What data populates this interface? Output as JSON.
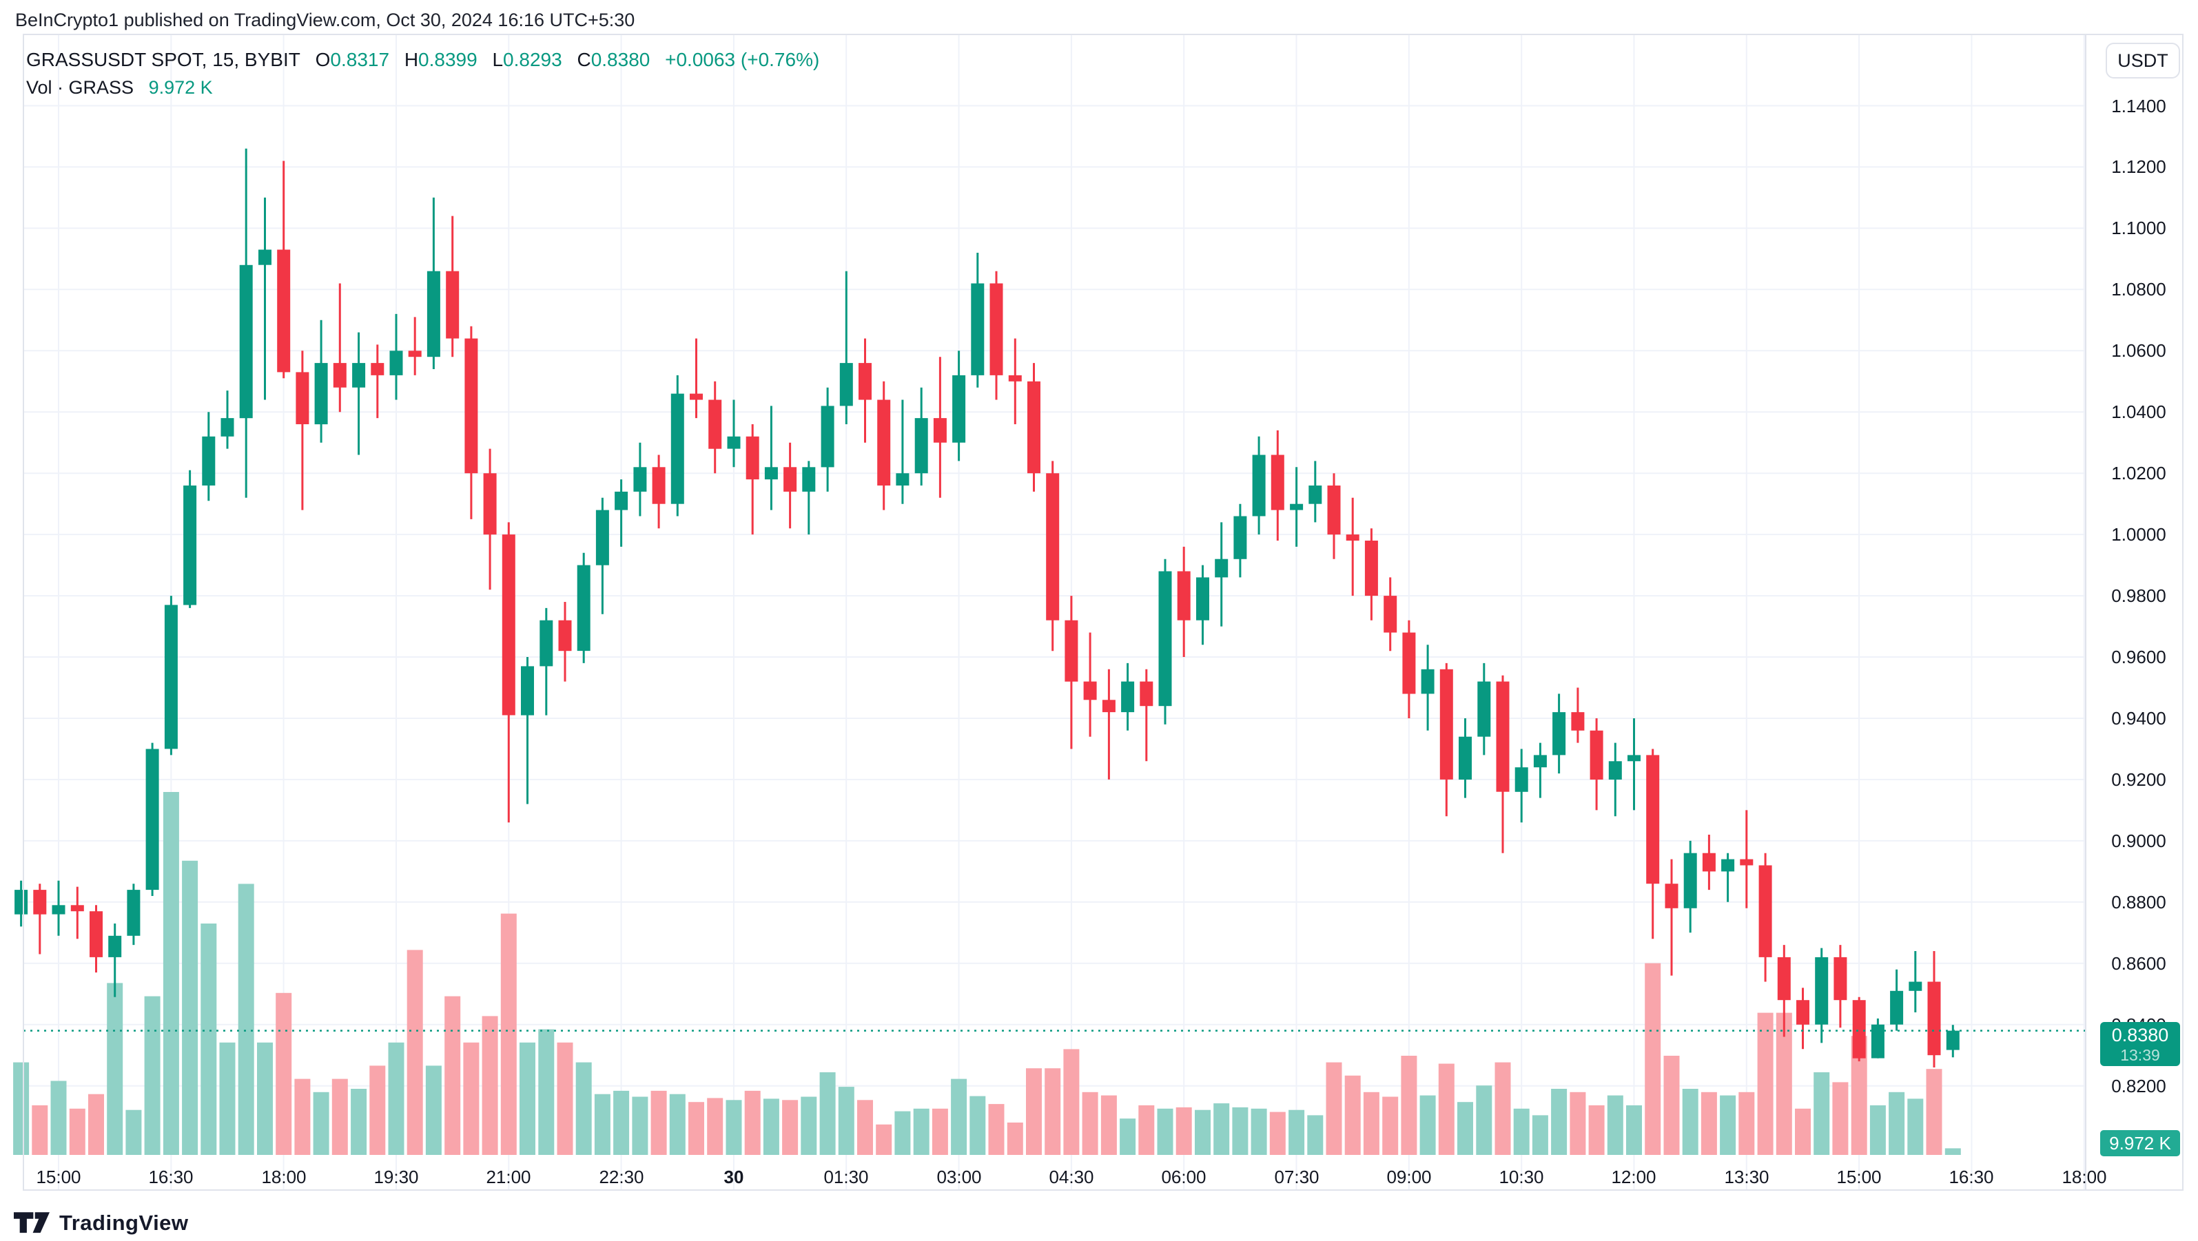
{
  "page": {
    "publish_header": "BeInCrypto1 published on TradingView.com, Oct 30, 2024 16:16 UTC+5:30",
    "logo_text": "TradingView"
  },
  "legend": {
    "symbol_line": "GRASSUSDT SPOT, 15, BYBIT",
    "o_label": "O",
    "o_value": "0.8317",
    "h_label": "H",
    "h_value": "0.8399",
    "l_label": "L",
    "l_value": "0.8293",
    "c_label": "C",
    "c_value": "0.8380",
    "change_value": "+0.0063 (+0.76%)",
    "vol_label": "Vol · GRASS",
    "vol_value": "9.972 K"
  },
  "axis_panel": {
    "currency_button_label": "USDT",
    "price_badge": {
      "price": "0.8380",
      "countdown": "13:39"
    },
    "volume_badge": "9.972 K"
  },
  "chart_data": {
    "type": "candlestick_with_volume",
    "symbol": "GRASSUSDT",
    "exchange": "BYBIT",
    "interval": "15",
    "quote_currency": "USDT",
    "start_time": "2024-10-29 14:30 UTC+5:30",
    "interval_minutes": 15,
    "last_price": 0.838,
    "current_bar": {
      "open": 0.8317,
      "high": 0.8399,
      "low": 0.8293,
      "close": 0.838,
      "volume_k": 9.972
    },
    "colors": {
      "up": "#089981",
      "down": "#F23645",
      "vol_up": "#90D1C6",
      "vol_down": "#F9A5AB",
      "grid": "#EFF2F9",
      "frame": "#E0E3EB",
      "text": "#131722",
      "accent": "#089981",
      "price_badge_bg": "#089981",
      "volume_badge_bg": "#22AB94"
    },
    "y_axis": {
      "side": "right",
      "labels": [
        "1.1400",
        "1.1200",
        "1.1000",
        "1.0800",
        "1.0600",
        "1.0400",
        "1.0200",
        "1.0000",
        "0.9800",
        "0.9600",
        "0.9400",
        "0.9200",
        "0.9000",
        "0.8800",
        "0.8600",
        "0.8400",
        "0.8200"
      ],
      "values": [
        1.14,
        1.12,
        1.1,
        1.08,
        1.06,
        1.04,
        1.02,
        1.0,
        0.98,
        0.96,
        0.94,
        0.92,
        0.9,
        0.88,
        0.86,
        0.84,
        0.82
      ],
      "grid": true
    },
    "x_axis": {
      "labels": [
        "15:00",
        "16:30",
        "18:00",
        "19:30",
        "21:00",
        "22:30",
        "30",
        "01:30",
        "03:00",
        "04:30",
        "06:00",
        "07:30",
        "09:00",
        "10:30",
        "12:00",
        "13:30",
        "15:00",
        "16:30",
        "18:00"
      ],
      "bold_index": 6,
      "grid": true
    },
    "candles": [
      [
        0.876,
        0.887,
        0.872,
        0.884
      ],
      [
        0.884,
        0.886,
        0.863,
        0.876
      ],
      [
        0.876,
        0.887,
        0.869,
        0.879
      ],
      [
        0.879,
        0.885,
        0.868,
        0.877
      ],
      [
        0.877,
        0.879,
        0.857,
        0.862
      ],
      [
        0.862,
        0.873,
        0.849,
        0.869
      ],
      [
        0.869,
        0.886,
        0.866,
        0.884
      ],
      [
        0.884,
        0.932,
        0.882,
        0.93
      ],
      [
        0.93,
        0.98,
        0.928,
        0.977
      ],
      [
        0.977,
        1.021,
        0.976,
        1.016
      ],
      [
        1.016,
        1.04,
        1.011,
        1.032
      ],
      [
        1.032,
        1.047,
        1.028,
        1.038
      ],
      [
        1.038,
        1.126,
        1.012,
        1.088
      ],
      [
        1.088,
        1.11,
        1.044,
        1.093
      ],
      [
        1.093,
        1.122,
        1.051,
        1.053
      ],
      [
        1.053,
        1.06,
        1.008,
        1.036
      ],
      [
        1.036,
        1.07,
        1.03,
        1.056
      ],
      [
        1.056,
        1.082,
        1.04,
        1.048
      ],
      [
        1.048,
        1.066,
        1.026,
        1.056
      ],
      [
        1.056,
        1.062,
        1.038,
        1.052
      ],
      [
        1.052,
        1.072,
        1.044,
        1.06
      ],
      [
        1.06,
        1.071,
        1.052,
        1.058
      ],
      [
        1.058,
        1.11,
        1.054,
        1.086
      ],
      [
        1.086,
        1.104,
        1.058,
        1.064
      ],
      [
        1.064,
        1.068,
        1.005,
        1.02
      ],
      [
        1.02,
        1.028,
        0.982,
        1.0
      ],
      [
        1.0,
        1.004,
        0.906,
        0.941
      ],
      [
        0.941,
        0.96,
        0.912,
        0.957
      ],
      [
        0.957,
        0.976,
        0.941,
        0.972
      ],
      [
        0.972,
        0.978,
        0.952,
        0.962
      ],
      [
        0.962,
        0.994,
        0.958,
        0.99
      ],
      [
        0.99,
        1.012,
        0.974,
        1.008
      ],
      [
        1.008,
        1.018,
        0.996,
        1.014
      ],
      [
        1.014,
        1.03,
        1.006,
        1.022
      ],
      [
        1.022,
        1.026,
        1.002,
        1.01
      ],
      [
        1.01,
        1.052,
        1.006,
        1.046
      ],
      [
        1.046,
        1.064,
        1.038,
        1.044
      ],
      [
        1.044,
        1.05,
        1.02,
        1.028
      ],
      [
        1.028,
        1.044,
        1.022,
        1.032
      ],
      [
        1.032,
        1.036,
        1.0,
        1.018
      ],
      [
        1.018,
        1.042,
        1.008,
        1.022
      ],
      [
        1.022,
        1.03,
        1.002,
        1.014
      ],
      [
        1.014,
        1.024,
        1.0,
        1.022
      ],
      [
        1.022,
        1.048,
        1.014,
        1.042
      ],
      [
        1.042,
        1.086,
        1.036,
        1.056
      ],
      [
        1.056,
        1.064,
        1.03,
        1.044
      ],
      [
        1.044,
        1.05,
        1.008,
        1.016
      ],
      [
        1.016,
        1.044,
        1.01,
        1.02
      ],
      [
        1.02,
        1.048,
        1.016,
        1.038
      ],
      [
        1.038,
        1.058,
        1.012,
        1.03
      ],
      [
        1.03,
        1.06,
        1.024,
        1.052
      ],
      [
        1.052,
        1.092,
        1.048,
        1.082
      ],
      [
        1.082,
        1.086,
        1.044,
        1.052
      ],
      [
        1.052,
        1.064,
        1.036,
        1.05
      ],
      [
        1.05,
        1.056,
        1.014,
        1.02
      ],
      [
        1.02,
        1.024,
        0.962,
        0.972
      ],
      [
        0.972,
        0.98,
        0.93,
        0.952
      ],
      [
        0.952,
        0.968,
        0.934,
        0.946
      ],
      [
        0.946,
        0.956,
        0.92,
        0.942
      ],
      [
        0.942,
        0.958,
        0.936,
        0.952
      ],
      [
        0.952,
        0.956,
        0.926,
        0.944
      ],
      [
        0.944,
        0.992,
        0.938,
        0.988
      ],
      [
        0.988,
        0.996,
        0.96,
        0.972
      ],
      [
        0.972,
        0.99,
        0.964,
        0.986
      ],
      [
        0.986,
        1.004,
        0.97,
        0.992
      ],
      [
        0.992,
        1.01,
        0.986,
        1.006
      ],
      [
        1.006,
        1.032,
        1.0,
        1.026
      ],
      [
        1.026,
        1.034,
        0.998,
        1.008
      ],
      [
        1.008,
        1.022,
        0.996,
        1.01
      ],
      [
        1.01,
        1.024,
        1.004,
        1.016
      ],
      [
        1.016,
        1.02,
        0.992,
        1.0
      ],
      [
        1.0,
        1.012,
        0.98,
        0.998
      ],
      [
        0.998,
        1.002,
        0.972,
        0.98
      ],
      [
        0.98,
        0.986,
        0.962,
        0.968
      ],
      [
        0.968,
        0.972,
        0.94,
        0.948
      ],
      [
        0.948,
        0.964,
        0.936,
        0.956
      ],
      [
        0.956,
        0.958,
        0.908,
        0.92
      ],
      [
        0.92,
        0.94,
        0.914,
        0.934
      ],
      [
        0.934,
        0.958,
        0.928,
        0.952
      ],
      [
        0.952,
        0.954,
        0.896,
        0.916
      ],
      [
        0.916,
        0.93,
        0.906,
        0.924
      ],
      [
        0.924,
        0.932,
        0.914,
        0.928
      ],
      [
        0.928,
        0.948,
        0.922,
        0.942
      ],
      [
        0.942,
        0.95,
        0.932,
        0.936
      ],
      [
        0.936,
        0.94,
        0.91,
        0.92
      ],
      [
        0.92,
        0.932,
        0.908,
        0.926
      ],
      [
        0.926,
        0.94,
        0.91,
        0.928
      ],
      [
        0.928,
        0.93,
        0.868,
        0.886
      ],
      [
        0.886,
        0.894,
        0.856,
        0.878
      ],
      [
        0.878,
        0.9,
        0.87,
        0.896
      ],
      [
        0.896,
        0.902,
        0.884,
        0.89
      ],
      [
        0.89,
        0.896,
        0.88,
        0.894
      ],
      [
        0.894,
        0.91,
        0.878,
        0.892
      ],
      [
        0.892,
        0.896,
        0.854,
        0.862
      ],
      [
        0.862,
        0.866,
        0.836,
        0.848
      ],
      [
        0.848,
        0.852,
        0.832,
        0.84
      ],
      [
        0.84,
        0.865,
        0.834,
        0.862
      ],
      [
        0.862,
        0.866,
        0.839,
        0.848
      ],
      [
        0.848,
        0.849,
        0.828,
        0.829
      ],
      [
        0.829,
        0.842,
        0.829,
        0.84
      ],
      [
        0.84,
        0.858,
        0.838,
        0.851
      ],
      [
        0.851,
        0.864,
        0.844,
        0.854
      ],
      [
        0.854,
        0.864,
        0.826,
        0.83
      ],
      [
        0.8317,
        0.8399,
        0.8293,
        0.838
      ]
    ],
    "volumes_k": [
      140,
      75,
      112,
      70,
      92,
      260,
      68,
      240,
      549,
      445,
      350,
      170,
      410,
      170,
      245,
      115,
      95,
      115,
      100,
      135,
      170,
      310,
      135,
      240,
      170,
      210,
      365,
      170,
      190,
      170,
      140,
      92,
      97,
      88,
      97,
      92,
      80,
      86,
      83,
      97,
      85,
      83,
      88,
      125,
      103,
      83,
      46,
      66,
      70,
      70,
      115,
      89,
      77,
      49,
      131,
      131,
      160,
      95,
      90,
      55,
      75,
      70,
      72,
      68,
      78,
      72,
      70,
      65,
      68,
      60,
      140,
      120,
      95,
      88,
      150,
      90,
      138,
      80,
      105,
      140,
      70,
      60,
      100,
      95,
      75,
      90,
      75,
      290,
      150,
      100,
      95,
      90,
      95,
      215,
      215,
      70,
      125,
      110,
      180,
      75,
      95,
      85,
      130,
      10
    ]
  }
}
